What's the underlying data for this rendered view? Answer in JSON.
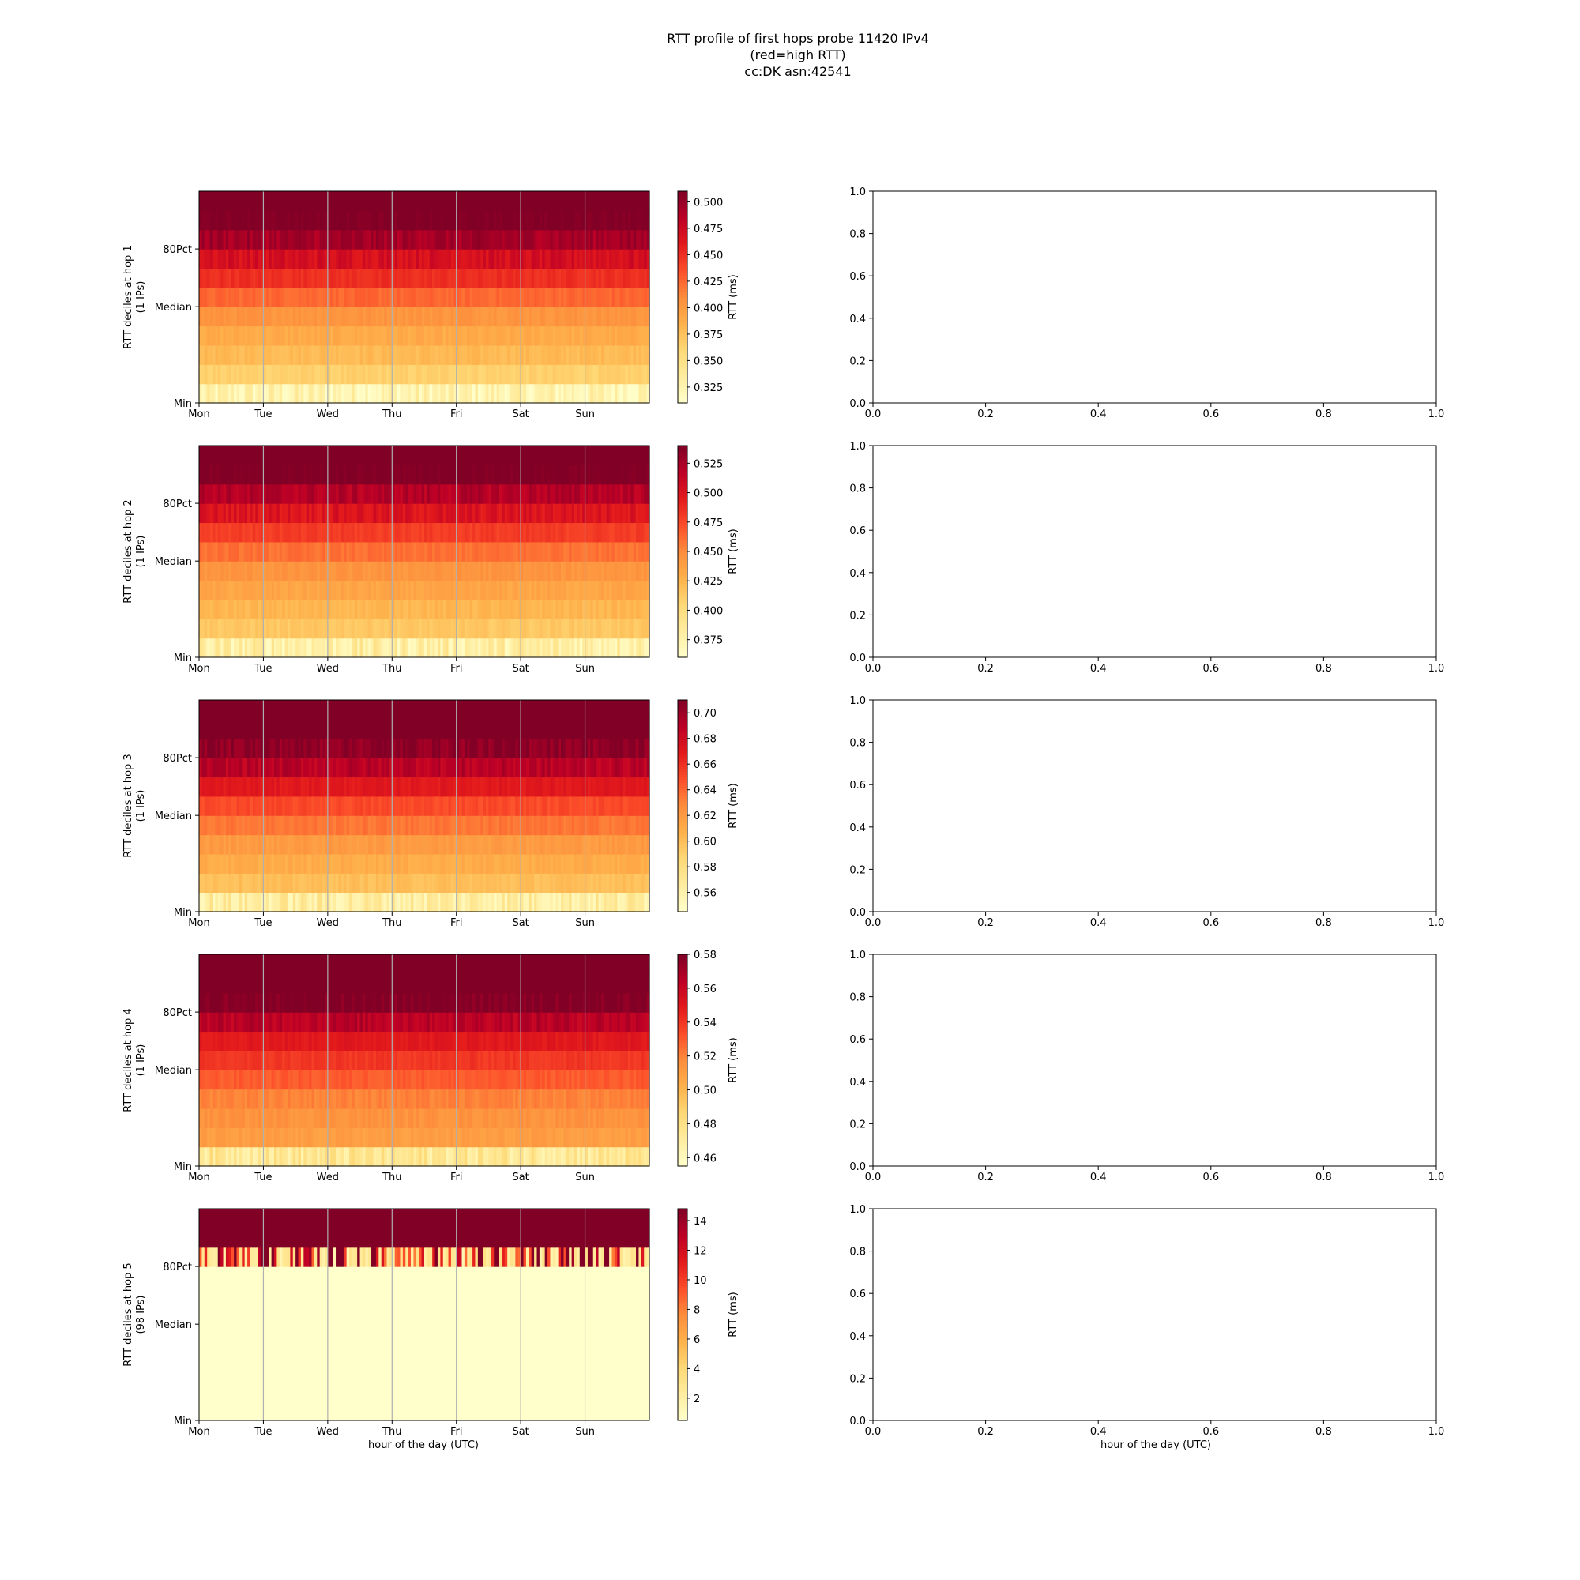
{
  "title_lines": [
    "RTT profile of first hops probe 11420 IPv4",
    "(red=high RTT)",
    "cc:DK asn:42541"
  ],
  "heatmap_ytick_labels": [
    "Min",
    "Median",
    "80Pct"
  ],
  "day_labels": [
    "Mon",
    "Tue",
    "Wed",
    "Thu",
    "Fri",
    "Sat",
    "Sun"
  ],
  "colorbar_label": "RTT (ms)",
  "colormap": [
    "#ffffcc",
    "#ffeda0",
    "#fed976",
    "#feb24c",
    "#fd8d3c",
    "#fc4e2a",
    "#e31a1c",
    "#bd0026",
    "#800026"
  ],
  "grid_color": "#b0b0b0",
  "xlabel": "hour of the day (UTC)",
  "chart_data": [
    {
      "type": "heatmap",
      "ylabel_lines": [
        "RTT deciles at hop 1",
        "(1 IPs)"
      ],
      "x_categories": [
        "Mon",
        "Tue",
        "Wed",
        "Thu",
        "Fri",
        "Sat",
        "Sun"
      ],
      "y_ticks": [
        "Min",
        "Median",
        "80Pct"
      ],
      "row_levels": [
        0.325,
        0.365,
        0.38,
        0.39,
        0.405,
        0.425,
        0.45,
        0.47,
        0.495,
        0.51,
        0.515
      ],
      "colorbar": {
        "label": "RTT (ms)",
        "range": [
          0.31,
          0.51
        ],
        "ticks": [
          0.325,
          0.35,
          0.375,
          0.4,
          0.425,
          0.45,
          0.475,
          0.5
        ]
      }
    },
    {
      "type": "heatmap",
      "ylabel_lines": [
        "RTT deciles at hop 2",
        "(1 IPs)"
      ],
      "x_categories": [
        "Mon",
        "Tue",
        "Wed",
        "Thu",
        "Fri",
        "Sat",
        "Sun"
      ],
      "y_ticks": [
        "Min",
        "Median",
        "80Pct"
      ],
      "row_levels": [
        0.38,
        0.415,
        0.425,
        0.435,
        0.445,
        0.46,
        0.48,
        0.5,
        0.52,
        0.54,
        0.545
      ],
      "colorbar": {
        "label": "RTT (ms)",
        "range": [
          0.36,
          0.54
        ],
        "ticks": [
          0.375,
          0.4,
          0.425,
          0.45,
          0.475,
          0.5,
          0.525
        ]
      }
    },
    {
      "type": "heatmap",
      "ylabel_lines": [
        "RTT deciles at hop 3",
        "(1 IPs)"
      ],
      "x_categories": [
        "Mon",
        "Tue",
        "Wed",
        "Thu",
        "Fri",
        "Sat",
        "Sun"
      ],
      "y_ticks": [
        "Min",
        "Median",
        "80Pct"
      ],
      "row_levels": [
        0.565,
        0.6,
        0.61,
        0.62,
        0.635,
        0.65,
        0.67,
        0.69,
        0.705,
        0.715,
        0.72
      ],
      "colorbar": {
        "label": "RTT (ms)",
        "range": [
          0.545,
          0.71
        ],
        "ticks": [
          0.56,
          0.58,
          0.6,
          0.62,
          0.64,
          0.66,
          0.68,
          0.7
        ]
      }
    },
    {
      "type": "heatmap",
      "ylabel_lines": [
        "RTT deciles at hop 4",
        "(1 IPs)"
      ],
      "x_categories": [
        "Mon",
        "Tue",
        "Wed",
        "Thu",
        "Fri",
        "Sat",
        "Sun"
      ],
      "y_ticks": [
        "Min",
        "Median",
        "80Pct"
      ],
      "row_levels": [
        0.475,
        0.51,
        0.515,
        0.52,
        0.53,
        0.54,
        0.55,
        0.565,
        0.58,
        0.59,
        0.59
      ],
      "colorbar": {
        "label": "RTT (ms)",
        "range": [
          0.455,
          0.58
        ],
        "ticks": [
          0.46,
          0.48,
          0.5,
          0.52,
          0.54,
          0.56,
          0.58
        ]
      }
    },
    {
      "type": "heatmap",
      "ylabel_lines": [
        "RTT deciles at hop 5",
        "(98 IPs)"
      ],
      "x_categories": [
        "Mon",
        "Tue",
        "Wed",
        "Thu",
        "Fri",
        "Sat",
        "Sun"
      ],
      "y_ticks": [
        "Min",
        "Median",
        "80Pct"
      ],
      "row_levels": [
        0.5,
        0.5,
        0.5,
        0.5,
        0.5,
        0.5,
        0.5,
        0.5,
        3.0,
        15,
        15
      ],
      "colorbar": {
        "label": "RTT (ms)",
        "range": [
          0.5,
          14.8
        ],
        "ticks": [
          2,
          4,
          6,
          8,
          10,
          12,
          14
        ]
      }
    }
  ],
  "empty_axes": {
    "type": "scatter",
    "xlim": [
      0.0,
      1.0
    ],
    "ylim": [
      0.0,
      1.0
    ],
    "x_ticks": [
      "0.0",
      "0.2",
      "0.4",
      "0.6",
      "0.8",
      "1.0"
    ],
    "y_ticks": [
      "0.0",
      "0.2",
      "0.4",
      "0.6",
      "0.8",
      "1.0"
    ],
    "xlabel": "hour of the day (UTC)"
  }
}
